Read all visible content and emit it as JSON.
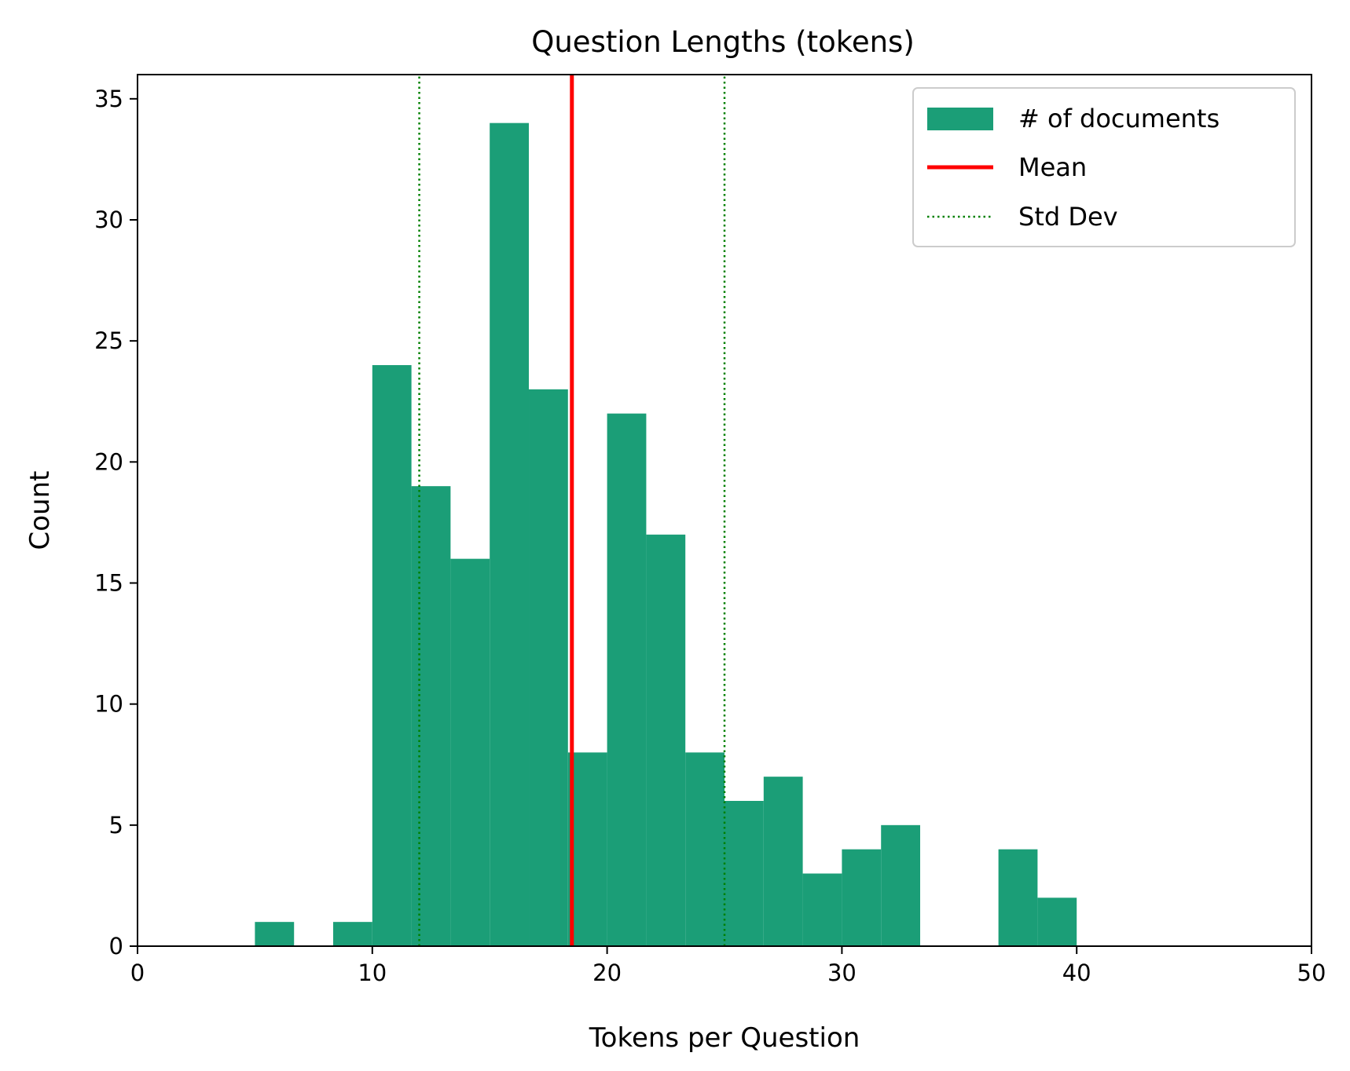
{
  "chart_data": {
    "type": "bar",
    "subtype": "histogram",
    "title": "Question Lengths (tokens)",
    "xlabel": "Tokens per Question",
    "ylabel": "Count",
    "xlim": [
      0,
      50
    ],
    "ylim": [
      0,
      36
    ],
    "xticks": [
      0,
      10,
      20,
      30,
      40,
      50
    ],
    "yticks": [
      0,
      5,
      10,
      15,
      20,
      25,
      30,
      35
    ],
    "grid": false,
    "legend_position": "top-right",
    "bin_edges": [
      5,
      6.667,
      8.333,
      10,
      11.667,
      13.333,
      15,
      16.667,
      18.333,
      20,
      21.667,
      23.333,
      25,
      26.667,
      28.333,
      30,
      31.667,
      33.333,
      35,
      36.667,
      38.333,
      40
    ],
    "counts": [
      1,
      0,
      1,
      24,
      19,
      16,
      34,
      23,
      8,
      22,
      17,
      8,
      6,
      7,
      3,
      4,
      5,
      0,
      0,
      4,
      2
    ],
    "mean": 18.5,
    "std_lines": [
      12.0,
      25.0
    ],
    "series": [
      {
        "name": "# of documents",
        "kind": "bars",
        "color": "#1b9e77"
      },
      {
        "name": "Mean",
        "kind": "solid-line",
        "color": "#ff0000"
      },
      {
        "name": "Std Dev",
        "kind": "dotted-line",
        "color": "#008000"
      }
    ]
  }
}
